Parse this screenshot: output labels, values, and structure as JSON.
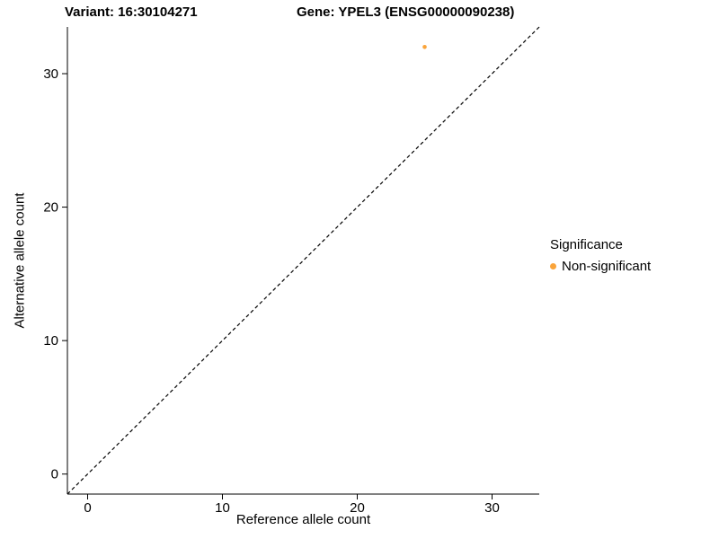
{
  "chart_data": {
    "type": "scatter",
    "title_left": "Variant: 16:30104271",
    "title_right": "Gene: YPEL3 (ENSG00000090238)",
    "xlabel": "Reference allele count",
    "ylabel": "Alternative allele count",
    "xlim": [
      -1.5,
      33.5
    ],
    "ylim": [
      -1.5,
      33.5
    ],
    "x_ticks": [
      0,
      10,
      20,
      30
    ],
    "y_ticks": [
      0,
      10,
      20,
      30
    ],
    "grid": false,
    "identity_line": {
      "style": "dashed",
      "from": [
        -1.5,
        -1.5
      ],
      "to": [
        33.5,
        33.5
      ],
      "color": "#000000"
    },
    "series": [
      {
        "name": "Non-significant",
        "color": "#FAA43A",
        "points": [
          {
            "x": 25,
            "y": 32
          }
        ]
      }
    ],
    "legend": {
      "title": "Significance",
      "position": "right",
      "entries": [
        {
          "label": "Non-significant",
          "color": "#FAA43A"
        }
      ]
    }
  }
}
